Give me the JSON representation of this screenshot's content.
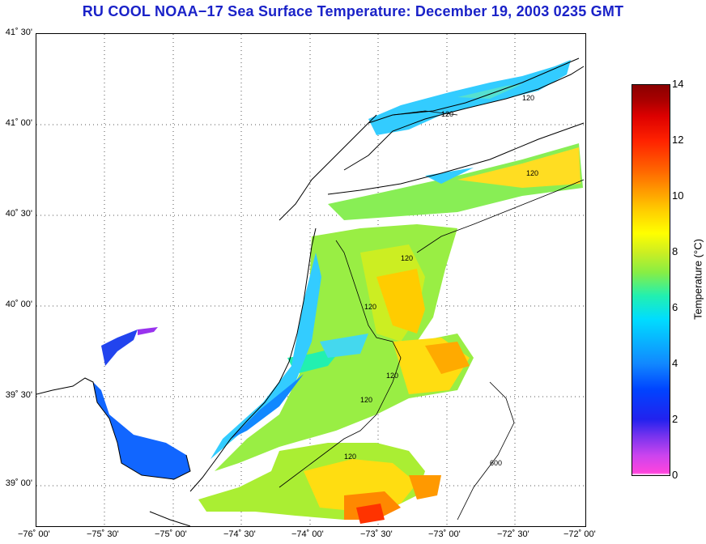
{
  "title": "RU COOL  NOAA−17  Sea Surface Temperature:  December 19, 2003 0235 GMT",
  "axes": {
    "lat_labels": [
      "41˚ 30'",
      "41˚ 00'",
      "40˚ 30'",
      "40˚ 00'",
      "39˚ 30'",
      "39˚ 00'"
    ],
    "lon_labels": [
      "−76˚ 00'",
      "−75˚ 30'",
      "−75˚ 00'",
      "−74˚ 30'",
      "−74˚ 00'",
      "−73˚ 30'",
      "−73˚ 00'",
      "−72˚ 30'",
      "−72˚ 00'"
    ]
  },
  "colorbar": {
    "label": "Temperature (°C)",
    "ticks": [
      "14",
      "12",
      "10",
      "8",
      "6",
      "4",
      "2",
      "0"
    ],
    "min": 0,
    "max": 14
  },
  "contours": {
    "isobath_labels": [
      "120",
      "120",
      "120",
      "120",
      "120",
      "120",
      "120",
      "120",
      "600"
    ]
  },
  "colors": {
    "title": "#1a22c8",
    "grid": "#555555",
    "coast": "#000000"
  }
}
